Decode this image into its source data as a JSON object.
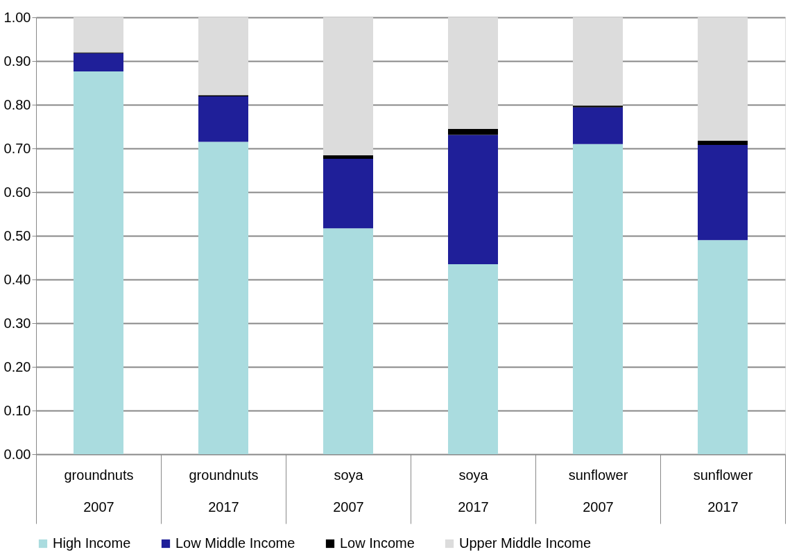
{
  "chart_data": {
    "type": "bar",
    "stacked": true,
    "categories": [
      "groundnuts 2007",
      "groundnuts 2017",
      "soya 2007",
      "soya 2017",
      "sunflower 2007",
      "sunflower 2017"
    ],
    "series": [
      {
        "name": "High Income",
        "color": "#aadcdf",
        "values": [
          0.876,
          0.715,
          0.517,
          0.435,
          0.71,
          0.49
        ]
      },
      {
        "name": "Low Middle Income",
        "color": "#1f1f99",
        "values": [
          0.042,
          0.104,
          0.159,
          0.296,
          0.084,
          0.218
        ]
      },
      {
        "name": "Low Income",
        "color": "#000000",
        "values": [
          0.002,
          0.003,
          0.008,
          0.014,
          0.004,
          0.01
        ]
      },
      {
        "name": "Upper Middle Income",
        "color": "#dcdcdc",
        "values": [
          0.08,
          0.178,
          0.316,
          0.255,
          0.202,
          0.282
        ]
      }
    ],
    "ylim": [
      0,
      1
    ],
    "yticks": [
      {
        "value": 0,
        "label": "0.00"
      },
      {
        "value": 0.1,
        "label": "0.10"
      },
      {
        "value": 0.2,
        "label": "0.20"
      },
      {
        "value": 0.3,
        "label": "0.30"
      },
      {
        "value": 0.4,
        "label": "0.40"
      },
      {
        "value": 0.5,
        "label": "0.50"
      },
      {
        "value": 0.6,
        "label": "0.60"
      },
      {
        "value": 0.7,
        "label": "0.70"
      },
      {
        "value": 0.8,
        "label": "0.80"
      },
      {
        "value": 0.9,
        "label": "0.90"
      },
      {
        "value": 1,
        "label": "1.00"
      }
    ],
    "grid": "y",
    "legend": "bottom"
  }
}
